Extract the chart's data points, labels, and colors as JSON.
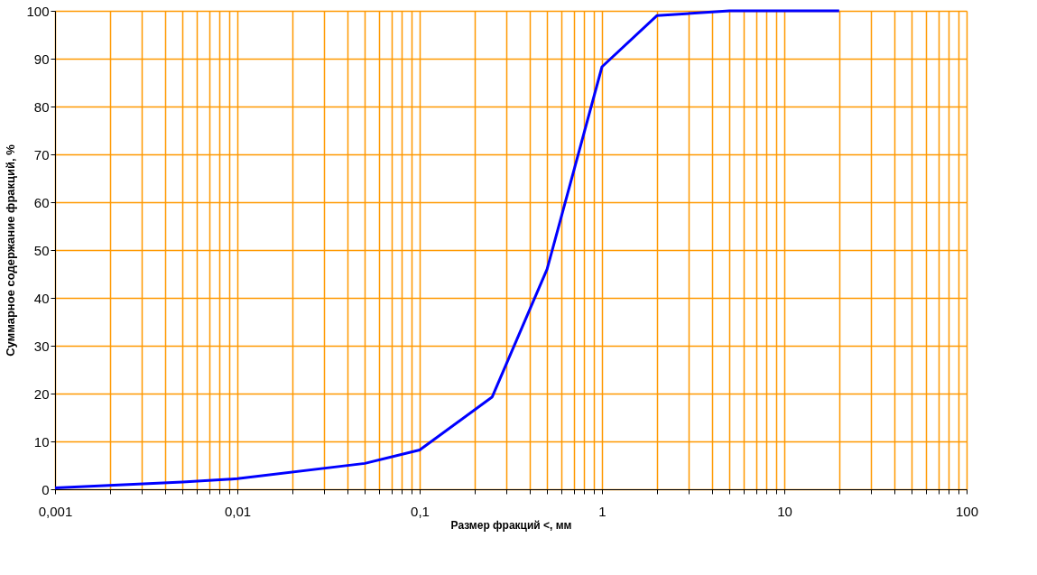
{
  "chart_data": {
    "type": "line",
    "xlabel": "Размер фракций <, мм",
    "ylabel": "Суммарное содержание фракций, %",
    "log": "x",
    "grid": true,
    "marker": "none",
    "line_style": "solid",
    "xlim": [
      0.001,
      100
    ],
    "ylim": [
      0,
      100
    ],
    "xticks": [
      {
        "value": 0.001,
        "label": "0,001"
      },
      {
        "value": 0.002,
        "label": null
      },
      {
        "value": 0.003,
        "label": null
      },
      {
        "value": 0.004,
        "label": null
      },
      {
        "value": 0.005,
        "label": null
      },
      {
        "value": 0.006,
        "label": null
      },
      {
        "value": 0.007,
        "label": null
      },
      {
        "value": 0.008,
        "label": null
      },
      {
        "value": 0.009,
        "label": null
      },
      {
        "value": 0.01,
        "label": "0,01"
      },
      {
        "value": 0.02,
        "label": null
      },
      {
        "value": 0.03,
        "label": null
      },
      {
        "value": 0.04,
        "label": null
      },
      {
        "value": 0.05,
        "label": null
      },
      {
        "value": 0.06,
        "label": null
      },
      {
        "value": 0.07,
        "label": null
      },
      {
        "value": 0.08,
        "label": null
      },
      {
        "value": 0.09,
        "label": null
      },
      {
        "value": 0.1,
        "label": "0,1"
      },
      {
        "value": 0.2,
        "label": null
      },
      {
        "value": 0.3,
        "label": null
      },
      {
        "value": 0.4,
        "label": null
      },
      {
        "value": 0.5,
        "label": null
      },
      {
        "value": 0.6,
        "label": null
      },
      {
        "value": 0.7,
        "label": null
      },
      {
        "value": 0.8,
        "label": null
      },
      {
        "value": 0.9,
        "label": null
      },
      1,
      {
        "value": 2,
        "label": null
      },
      {
        "value": 3,
        "label": null
      },
      {
        "value": 4,
        "label": null
      },
      {
        "value": 5,
        "label": null
      },
      {
        "value": 6,
        "label": null
      },
      {
        "value": 7,
        "label": null
      },
      {
        "value": 8,
        "label": null
      },
      {
        "value": 9,
        "label": null
      },
      10,
      {
        "value": 20,
        "label": null
      },
      {
        "value": 30,
        "label": null
      },
      {
        "value": 40,
        "label": null
      },
      {
        "value": 50,
        "label": null
      },
      {
        "value": 60,
        "label": null
      },
      {
        "value": 70,
        "label": null
      },
      {
        "value": 80,
        "label": null
      },
      {
        "value": 90,
        "label": null
      },
      100
    ],
    "yticks": [
      0,
      10,
      20,
      30,
      40,
      50,
      60,
      70,
      80,
      90,
      100
    ],
    "series": [
      {
        "color": "#0000ff",
        "x": [
          0.001,
          0.005,
          0.01,
          0.05,
          0.1,
          0.25,
          0.5,
          1,
          2,
          5,
          10,
          20
        ],
        "values": [
          0.3,
          1.5,
          2.2,
          5.4,
          8.2,
          19.3,
          46,
          88.3,
          99,
          100,
          100,
          100
        ]
      }
    ]
  }
}
